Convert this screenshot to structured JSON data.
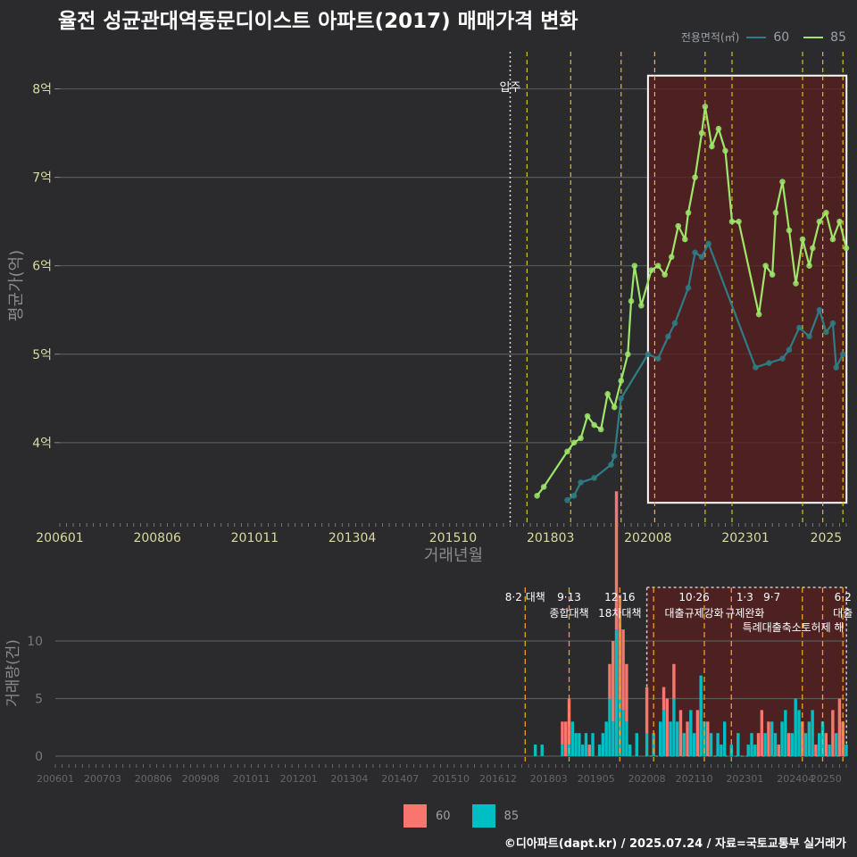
{
  "title": "율전 성균관대역동문디이스트 아파트(2017) 매매가격 변화",
  "legend": {
    "title": "전용면적(㎡)",
    "items": [
      {
        "label": "60",
        "line_color": "#2e7d86",
        "fill_color": "#f8766d"
      },
      {
        "label": "85",
        "line_color": "#9ee66a",
        "fill_color": "#00bfc4"
      }
    ]
  },
  "caption": "©디아파트(dapt.kr) / 2025.07.24 / 자료=국토교통부 실거래가",
  "colors": {
    "bg": "#2b2b2d",
    "grid": "#595959",
    "series60": "#2e7d86",
    "series85": "#9ee66a",
    "bar60": "#f8766d",
    "bar85": "#00bfc4",
    "policy_line": "#d7c31a",
    "shade": "#5a1e1e",
    "axis_text": "#d9d9a0"
  },
  "chart_data": [
    {
      "type": "line",
      "ylabel": "평균가(억)",
      "xlabel": "거래년월",
      "x_ticks": [
        "200601",
        "200806",
        "201011",
        "201304",
        "201510",
        "201803",
        "202008",
        "202301",
        "2025"
      ],
      "y_ticks": [
        "4억",
        "5억",
        "6억",
        "7억",
        "8억"
      ],
      "ylim": [
        3.1,
        8.45
      ],
      "x_range": [
        "2006-01",
        "2025-07"
      ],
      "move_in": {
        "label": "입주",
        "date": "2017-03"
      },
      "policy_dates": [
        "2017-08",
        "2018-09",
        "2019-12",
        "2020-10",
        "2022-01",
        "2022-09",
        "2024-06",
        "2024-12",
        "2025-06"
      ],
      "highlight_range": [
        "2020-08",
        "2025-06"
      ],
      "series": [
        {
          "name": "60",
          "points": [
            [
              "2018-08",
              3.35
            ],
            [
              "2018-10",
              3.4
            ],
            [
              "2018-12",
              3.55
            ],
            [
              "2019-04",
              3.6
            ],
            [
              "2019-09",
              3.75
            ],
            [
              "2019-10",
              3.85
            ],
            [
              "2019-12",
              4.5
            ],
            [
              "2020-08",
              5.0
            ],
            [
              "2020-11",
              4.95
            ],
            [
              "2021-02",
              5.2
            ],
            [
              "2021-04",
              5.35
            ],
            [
              "2021-08",
              5.75
            ],
            [
              "2021-10",
              6.15
            ],
            [
              "2021-12",
              6.1
            ],
            [
              "2022-02",
              6.25
            ],
            [
              "2023-04",
              4.85
            ],
            [
              "2023-08",
              4.9
            ],
            [
              "2023-12",
              4.95
            ],
            [
              "2024-02",
              5.05
            ],
            [
              "2024-05",
              5.3
            ],
            [
              "2024-08",
              5.2
            ],
            [
              "2024-11",
              5.5
            ],
            [
              "2025-01",
              5.25
            ],
            [
              "2025-03",
              5.35
            ],
            [
              "2025-04",
              4.85
            ],
            [
              "2025-06",
              5.0
            ]
          ]
        },
        {
          "name": "85",
          "points": [
            [
              "2017-11",
              3.4
            ],
            [
              "2018-01",
              3.5
            ],
            [
              "2018-08",
              3.9
            ],
            [
              "2018-10",
              4.0
            ],
            [
              "2018-12",
              4.05
            ],
            [
              "2019-02",
              4.3
            ],
            [
              "2019-04",
              4.2
            ],
            [
              "2019-06",
              4.15
            ],
            [
              "2019-08",
              4.55
            ],
            [
              "2019-10",
              4.4
            ],
            [
              "2019-12",
              4.7
            ],
            [
              "2020-02",
              5.0
            ],
            [
              "2020-03",
              5.6
            ],
            [
              "2020-04",
              6.0
            ],
            [
              "2020-06",
              5.55
            ],
            [
              "2020-09",
              5.95
            ],
            [
              "2020-11",
              6.0
            ],
            [
              "2021-01",
              5.9
            ],
            [
              "2021-03",
              6.1
            ],
            [
              "2021-05",
              6.45
            ],
            [
              "2021-07",
              6.3
            ],
            [
              "2021-08",
              6.6
            ],
            [
              "2021-10",
              7.0
            ],
            [
              "2021-12",
              7.5
            ],
            [
              "2022-01",
              7.8
            ],
            [
              "2022-03",
              7.35
            ],
            [
              "2022-05",
              7.55
            ],
            [
              "2022-07",
              7.3
            ],
            [
              "2022-09",
              6.5
            ],
            [
              "2022-11",
              6.5
            ],
            [
              "2023-05",
              5.45
            ],
            [
              "2023-07",
              6.0
            ],
            [
              "2023-09",
              5.9
            ],
            [
              "2023-10",
              6.6
            ],
            [
              "2023-12",
              6.95
            ],
            [
              "2024-02",
              6.4
            ],
            [
              "2024-04",
              5.8
            ],
            [
              "2024-06",
              6.3
            ],
            [
              "2024-08",
              6.0
            ],
            [
              "2024-09",
              6.2
            ],
            [
              "2024-11",
              6.5
            ],
            [
              "2025-01",
              6.6
            ],
            [
              "2025-03",
              6.3
            ],
            [
              "2025-05",
              6.5
            ],
            [
              "2025-07",
              6.2
            ]
          ]
        }
      ]
    },
    {
      "type": "bar",
      "ylabel": "거래량(건)",
      "y_ticks": [
        "0",
        "5",
        "10"
      ],
      "ylim": [
        0,
        14.5
      ],
      "x_ticks": [
        "200601",
        "200703",
        "200806",
        "200908",
        "201011",
        "201201",
        "201304",
        "201407",
        "201510",
        "201612",
        "201803",
        "201905",
        "202008",
        "202110",
        "202301",
        "202404",
        "20250"
      ],
      "policy_labels": [
        {
          "date": "2017-08",
          "top": "8·2 대책",
          "bottom": ""
        },
        {
          "date": "2018-09",
          "top": "9·13",
          "bottom": "종합대책"
        },
        {
          "date": "2019-12",
          "top": "12·16",
          "bottom": "18차대책"
        },
        {
          "date": "2021-10",
          "top": "10·26",
          "bottom": "대출규제강화"
        },
        {
          "date": "2023-01",
          "top": "1·3",
          "bottom": "규제완화"
        },
        {
          "date": "2023-09",
          "top": "9·7",
          "bottom": "특례대출축소"
        },
        {
          "date": "2024-12",
          "top": "",
          "bottom": "토허제 해"
        },
        {
          "date": "2025-06",
          "top": "6·2",
          "bottom": "대출"
        }
      ],
      "series": [
        {
          "name": "60",
          "values": [
            [
              "2018-07",
              2
            ],
            [
              "2018-08",
              3
            ],
            [
              "2018-09",
              4
            ],
            [
              "2019-03",
              1
            ],
            [
              "2019-09",
              3
            ],
            [
              "2019-10",
              7
            ],
            [
              "2019-11",
              12
            ],
            [
              "2019-12",
              9
            ],
            [
              "2020-01",
              7
            ],
            [
              "2020-02",
              5
            ],
            [
              "2020-08",
              4
            ],
            [
              "2021-01",
              2
            ],
            [
              "2021-02",
              5
            ],
            [
              "2021-04",
              3
            ],
            [
              "2021-06",
              4
            ],
            [
              "2021-08",
              3
            ],
            [
              "2021-11",
              4
            ],
            [
              "2022-02",
              3
            ],
            [
              "2023-05",
              2
            ],
            [
              "2023-06",
              4
            ],
            [
              "2023-08",
              3
            ],
            [
              "2023-11",
              1
            ],
            [
              "2024-02",
              2
            ],
            [
              "2024-06",
              3
            ],
            [
              "2024-10",
              1
            ],
            [
              "2025-01",
              2
            ],
            [
              "2025-03",
              4
            ],
            [
              "2025-05",
              5
            ],
            [
              "2025-06",
              3
            ]
          ]
        },
        {
          "name": "85",
          "values": [
            [
              "2017-11",
              1
            ],
            [
              "2018-01",
              1
            ],
            [
              "2018-07",
              1
            ],
            [
              "2018-09",
              1
            ],
            [
              "2018-10",
              3
            ],
            [
              "2018-11",
              2
            ],
            [
              "2018-12",
              2
            ],
            [
              "2019-01",
              1
            ],
            [
              "2019-02",
              2
            ],
            [
              "2019-04",
              2
            ],
            [
              "2019-06",
              1
            ],
            [
              "2019-07",
              2
            ],
            [
              "2019-08",
              3
            ],
            [
              "2019-09",
              5
            ],
            [
              "2019-10",
              3
            ],
            [
              "2019-11",
              11
            ],
            [
              "2019-12",
              5
            ],
            [
              "2020-01",
              4
            ],
            [
              "2020-02",
              3
            ],
            [
              "2020-03",
              1
            ],
            [
              "2020-05",
              2
            ],
            [
              "2020-08",
              2
            ],
            [
              "2020-10",
              2
            ],
            [
              "2020-12",
              3
            ],
            [
              "2021-01",
              4
            ],
            [
              "2021-03",
              3
            ],
            [
              "2021-04",
              5
            ],
            [
              "2021-05",
              3
            ],
            [
              "2021-07",
              2
            ],
            [
              "2021-09",
              4
            ],
            [
              "2021-10",
              2
            ],
            [
              "2021-12",
              7
            ],
            [
              "2022-01",
              3
            ],
            [
              "2022-03",
              2
            ],
            [
              "2022-05",
              2
            ],
            [
              "2022-06",
              1
            ],
            [
              "2022-07",
              3
            ],
            [
              "2022-09",
              1
            ],
            [
              "2022-11",
              2
            ],
            [
              "2023-02",
              1
            ],
            [
              "2023-03",
              2
            ],
            [
              "2023-04",
              1
            ],
            [
              "2023-07",
              2
            ],
            [
              "2023-09",
              3
            ],
            [
              "2023-10",
              2
            ],
            [
              "2023-12",
              3
            ],
            [
              "2024-01",
              4
            ],
            [
              "2024-03",
              2
            ],
            [
              "2024-04",
              5
            ],
            [
              "2024-05",
              4
            ],
            [
              "2024-07",
              2
            ],
            [
              "2024-08",
              3
            ],
            [
              "2024-09",
              4
            ],
            [
              "2024-11",
              2
            ],
            [
              "2024-12",
              3
            ],
            [
              "2025-02",
              1
            ],
            [
              "2025-04",
              2
            ],
            [
              "2025-07",
              1
            ]
          ]
        }
      ]
    }
  ]
}
